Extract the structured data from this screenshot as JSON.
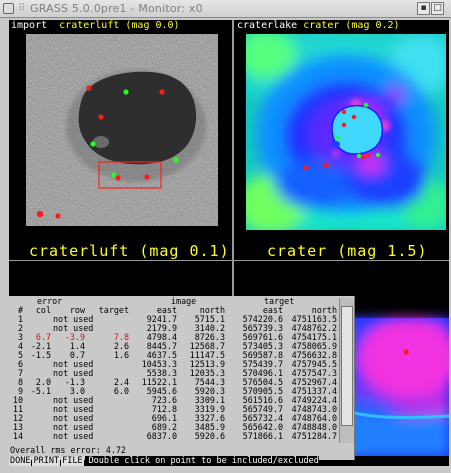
{
  "window": {
    "title": "GRASS 5.0.0pre1 - Monitor: x0"
  },
  "left_panel": {
    "mode": "import",
    "map": "craterluft (mag 0.0)",
    "zoom_label": "craterluft (mag 0.1)"
  },
  "right_panel": {
    "map": "craterlake crater (mag 0.2)",
    "map_prefix": "craterlake",
    "map_suffix": "crater (mag 0.2)",
    "zoom_label": "crater (mag 1.5)"
  },
  "table": {
    "group_headers": {
      "error": "error",
      "image": "image",
      "target": "target"
    },
    "columns": [
      "#",
      "col",
      "row",
      "target",
      "east",
      "north",
      "east",
      "north"
    ],
    "rows": [
      {
        "n": "1",
        "col": "",
        "row": "not used",
        "tgt": "",
        "ie": "9241.7",
        "in": "5715.1",
        "te": "574220.6",
        "tn": "4751163.5",
        "red": false
      },
      {
        "n": "2",
        "col": "",
        "row": "not used",
        "tgt": "",
        "ie": "2179.9",
        "in": "3140.2",
        "te": "565739.3",
        "tn": "4748762.2",
        "red": false
      },
      {
        "n": "3",
        "col": "6.7",
        "row": "-3.9",
        "tgt": "7.8",
        "ie": "4798.4",
        "in": "8726.3",
        "te": "569761.6",
        "tn": "4754175.1",
        "red": true
      },
      {
        "n": "4",
        "col": "-2.1",
        "row": "1.4",
        "tgt": "2.6",
        "ie": "8445.7",
        "in": "12568.7",
        "te": "573405.3",
        "tn": "4758065.9",
        "red": false
      },
      {
        "n": "5",
        "col": "-1.5",
        "row": "0.7",
        "tgt": "1.6",
        "ie": "4637.5",
        "in": "11147.5",
        "te": "569587.8",
        "tn": "4756632.8",
        "red": false
      },
      {
        "n": "6",
        "col": "",
        "row": "not used",
        "tgt": "",
        "ie": "10453.3",
        "in": "12513.9",
        "te": "575439.7",
        "tn": "4757945.5",
        "red": false
      },
      {
        "n": "7",
        "col": "",
        "row": "not used",
        "tgt": "",
        "ie": "5538.3",
        "in": "12035.3",
        "te": "570496.1",
        "tn": "4757547.3",
        "red": false
      },
      {
        "n": "8",
        "col": "2.0",
        "row": "-1.3",
        "tgt": "2.4",
        "ie": "11522.1",
        "in": "7544.3",
        "te": "576504.5",
        "tn": "4752967.4",
        "red": false
      },
      {
        "n": "9",
        "col": "-5.1",
        "row": "3.0",
        "tgt": "6.0",
        "ie": "5945.6",
        "in": "5920.3",
        "te": "570905.5",
        "tn": "4751337.4",
        "red": false
      },
      {
        "n": "10",
        "col": "",
        "row": "not used",
        "tgt": "",
        "ie": "723.6",
        "in": "3309.1",
        "te": "561516.6",
        "tn": "4749224.4",
        "red": false
      },
      {
        "n": "11",
        "col": "",
        "row": "not used",
        "tgt": "",
        "ie": "712.8",
        "in": "3319.9",
        "te": "565749.7",
        "tn": "4748743.0",
        "red": false
      },
      {
        "n": "12",
        "col": "",
        "row": "not used",
        "tgt": "",
        "ie": "696.1",
        "in": "3327.6",
        "te": "565732.4",
        "tn": "4748764.0",
        "red": false
      },
      {
        "n": "13",
        "col": "",
        "row": "not used",
        "tgt": "",
        "ie": "689.2",
        "in": "3485.9",
        "te": "565642.0",
        "tn": "4748848.0",
        "red": false
      },
      {
        "n": "14",
        "col": "",
        "row": "not used",
        "tgt": "",
        "ie": "6837.0",
        "in": "5920.6",
        "te": "571866.1",
        "tn": "4751284.7",
        "red": false
      }
    ],
    "rms": "Overall rms error: 4.72"
  },
  "statusbar": {
    "done": "DONE",
    "print": "PRINT",
    "file": "FILE",
    "message": "Double click on point to be included/excluded"
  },
  "colors": {
    "accent_yellow": "#ffff20",
    "error_red": "#e01010",
    "point_green": "#22ff22",
    "point_red": "#ff1a1a"
  }
}
